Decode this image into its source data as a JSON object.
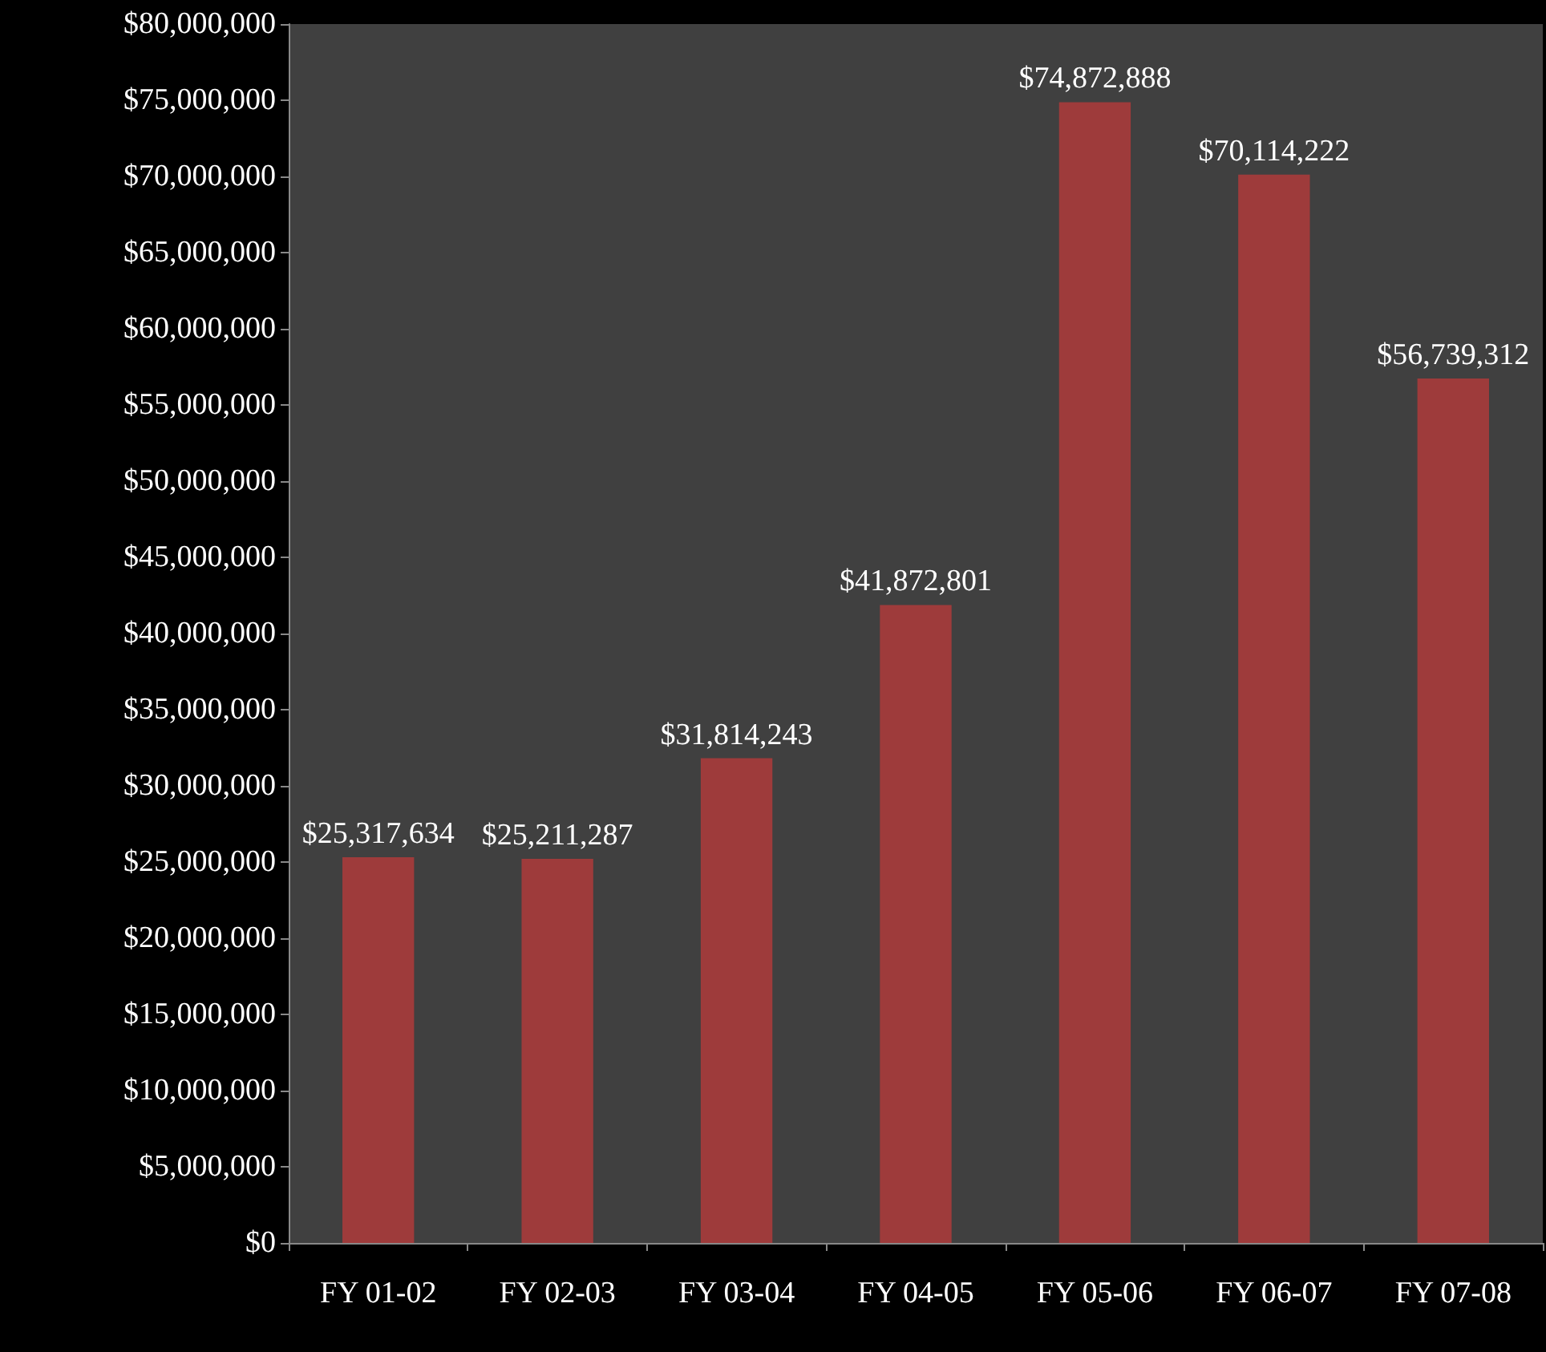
{
  "chart_data": {
    "type": "bar",
    "categories": [
      "FY 01-02",
      "FY 02-03",
      "FY 03-04",
      "FY 04-05",
      "FY 05-06",
      "FY 06-07",
      "FY 07-08"
    ],
    "values": [
      25317634,
      25211287,
      31814243,
      41872801,
      74872888,
      70114222,
      56739312
    ],
    "value_labels": [
      "$25,317,634",
      "$25,211,287",
      "$31,814,243",
      "$41,872,801",
      "$74,872,888",
      "$70,114,222",
      "$56,739,312"
    ],
    "color": "#9e3b3b",
    "ylim": [
      0,
      80000000
    ],
    "yticks": [
      {
        "value": 0,
        "label": "$0"
      },
      {
        "value": 5000000,
        "label": "$5,000,000"
      },
      {
        "value": 10000000,
        "label": "$10,000,000"
      },
      {
        "value": 15000000,
        "label": "$15,000,000"
      },
      {
        "value": 20000000,
        "label": "$20,000,000"
      },
      {
        "value": 25000000,
        "label": "$25,000,000"
      },
      {
        "value": 30000000,
        "label": "$30,000,000"
      },
      {
        "value": 35000000,
        "label": "$35,000,000"
      },
      {
        "value": 40000000,
        "label": "$40,000,000"
      },
      {
        "value": 45000000,
        "label": "$45,000,000"
      },
      {
        "value": 50000000,
        "label": "$50,000,000"
      },
      {
        "value": 55000000,
        "label": "$55,000,000"
      },
      {
        "value": 60000000,
        "label": "$60,000,000"
      },
      {
        "value": 65000000,
        "label": "$65,000,000"
      },
      {
        "value": 70000000,
        "label": "$70,000,000"
      },
      {
        "value": 75000000,
        "label": "$75,000,000"
      },
      {
        "value": 80000000,
        "label": "$80,000,000"
      }
    ],
    "grid": false
  }
}
